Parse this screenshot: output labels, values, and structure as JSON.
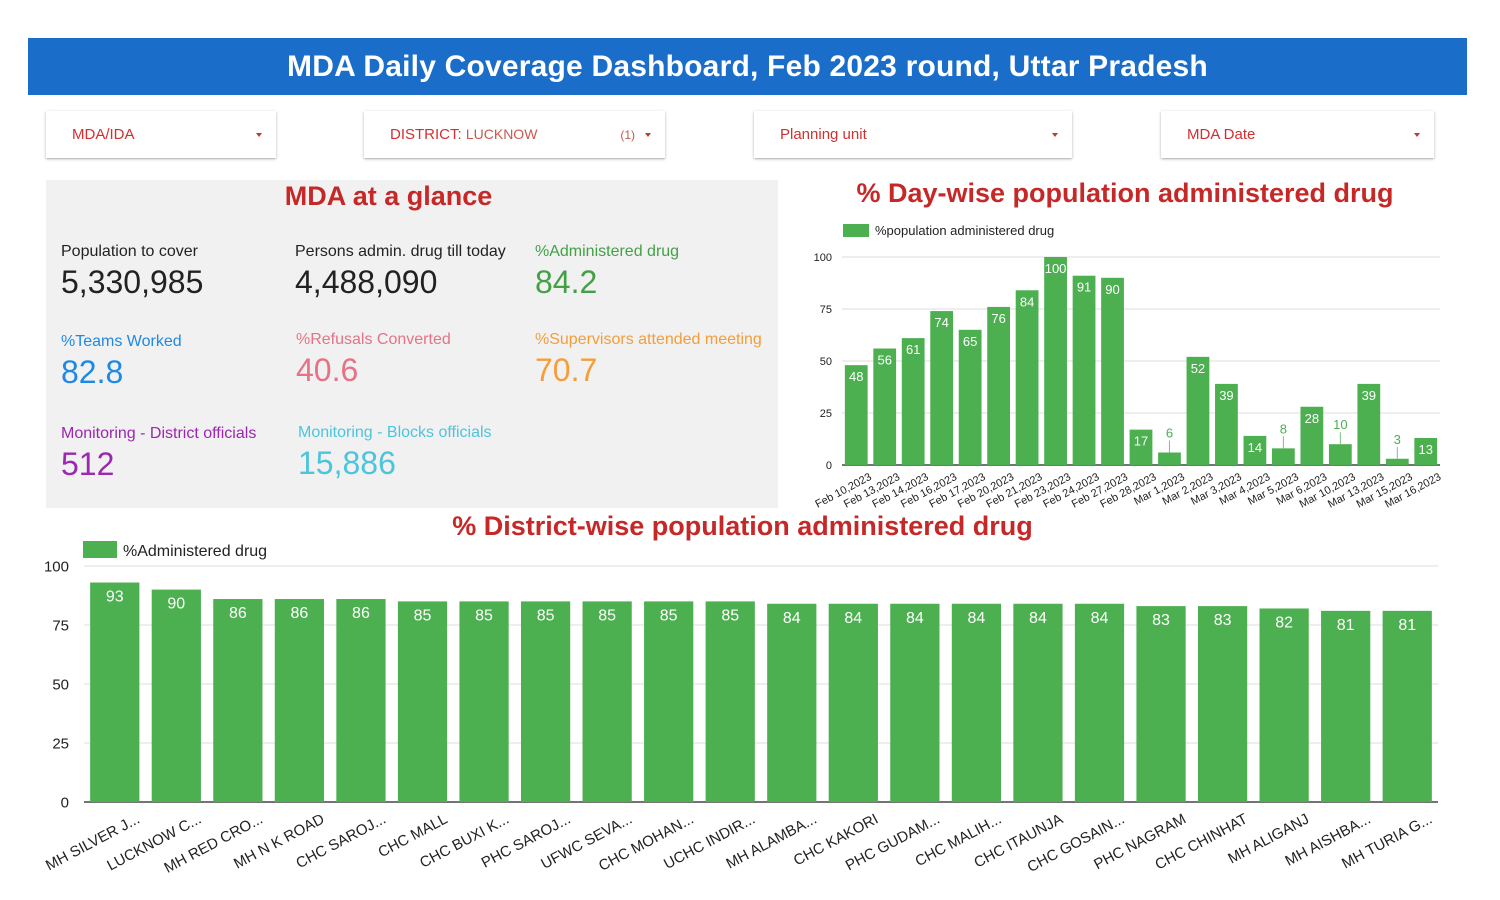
{
  "header": {
    "title": "MDA Daily Coverage Dashboard, Feb 2023 round, Uttar Pradesh"
  },
  "filters": {
    "mda": {
      "label": "MDA/IDA"
    },
    "district": {
      "label": "DISTRICT:",
      "value": "LUCKNOW",
      "count": "(1)"
    },
    "planning": {
      "label": "Planning unit"
    },
    "date": {
      "label": "MDA Date"
    }
  },
  "glance": {
    "title": "MDA at a glance",
    "kpis": [
      {
        "label": "Population to cover",
        "value": "5,330,985",
        "color": "#222222"
      },
      {
        "label": "Persons admin. drug till today",
        "value": "4,488,090",
        "color": "#222222"
      },
      {
        "label": "%Administered drug",
        "value": "84.2",
        "color": "#43a047"
      },
      {
        "label": "%Teams Worked",
        "value": "82.8",
        "color": "#1e88e5"
      },
      {
        "label": "%Refusals Converted",
        "value": "40.6",
        "color": "#e57386"
      },
      {
        "label": "%Supervisors attended meeting",
        "value": "70.7",
        "color": "#f59d3a"
      },
      {
        "label": "Monitoring - District officials",
        "value": "512",
        "color": "#9c27b0"
      },
      {
        "label": "Monitoring - Blocks officials",
        "value": "15,886",
        "color": "#4dc4de"
      }
    ]
  },
  "colors": {
    "bar": "#4caf50",
    "title": "#c62828",
    "header": "#1a6ec9"
  },
  "chart_data": [
    {
      "type": "bar",
      "title": "% Day-wise population administered drug",
      "legend": "top-left",
      "grid": true,
      "ylim": [
        0,
        100
      ],
      "yticks": [
        0,
        25,
        50,
        75,
        100
      ],
      "categories": [
        "Feb 10,2023",
        "Feb 13,2023",
        "Feb 14,2023",
        "Feb 16,2023",
        "Feb 17,2023",
        "Feb 20,2023",
        "Feb 21,2023",
        "Feb 23,2023",
        "Feb 24,2023",
        "Feb 27,2023",
        "Feb 28,2023",
        "Mar 1,2023",
        "Mar 2,2023",
        "Mar 3,2023",
        "Mar 4,2023",
        "Mar 5,2023",
        "Mar 6,2023",
        "Mar 10,2023",
        "Mar 13,2023",
        "Mar 15,2023",
        "Mar 16,2023"
      ],
      "series": [
        {
          "name": "%population administered drug",
          "values": [
            48,
            56,
            61,
            74,
            65,
            76,
            84,
            100,
            91,
            90,
            17,
            6,
            52,
            39,
            14,
            8,
            28,
            10,
            39,
            3,
            13
          ]
        }
      ]
    },
    {
      "type": "bar",
      "title": "% District-wise population administered drug",
      "legend": "top-left",
      "grid": true,
      "ylim": [
        0,
        100
      ],
      "yticks": [
        0,
        25,
        50,
        75,
        100
      ],
      "categories": [
        "MH SILVER J...",
        "LUCKNOW C...",
        "MH RED CRO...",
        "MH N K ROAD",
        "CHC SAROJ...",
        "CHC MALL",
        "CHC BUXI K...",
        "PHC SAROJ...",
        "UFWC SEVA...",
        "CHC MOHAN...",
        "UCHC INDIR...",
        "MH ALAMBA...",
        "CHC KAKORI",
        "PHC GUDAM...",
        "CHC MALIH...",
        "CHC ITAUNJA",
        "CHC GOSAIN...",
        "PHC NAGRAM",
        "CHC CHINHAT",
        "MH ALIGANJ",
        "MH AISHBA...",
        "MH TURIA G..."
      ],
      "series": [
        {
          "name": "%Administered drug",
          "values": [
            93,
            90,
            86,
            86,
            86,
            85,
            85,
            85,
            85,
            85,
            85,
            84,
            84,
            84,
            84,
            84,
            84,
            83,
            83,
            82,
            81,
            81
          ]
        }
      ]
    }
  ]
}
